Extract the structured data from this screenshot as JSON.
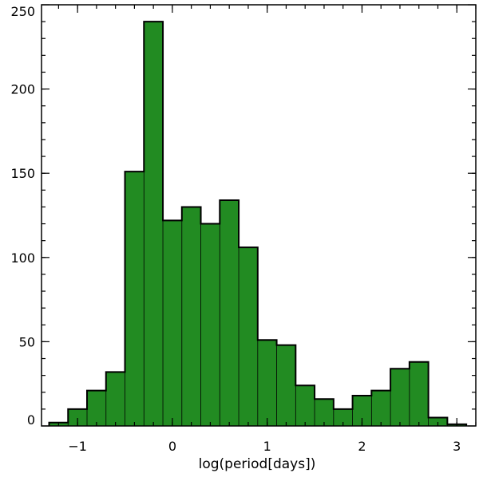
{
  "chart_data": {
    "type": "bar",
    "title": "",
    "xlabel": "log(period[days])",
    "ylabel": "",
    "xlim": [
      -1.38,
      3.2
    ],
    "ylim": [
      0,
      250
    ],
    "bar_color": "#228b22",
    "edge_color": "#000000",
    "bins": [
      {
        "x0": -1.3,
        "x1": -1.1,
        "value": 2
      },
      {
        "x0": -1.1,
        "x1": -0.9,
        "value": 10
      },
      {
        "x0": -0.9,
        "x1": -0.7,
        "value": 21
      },
      {
        "x0": -0.7,
        "x1": -0.5,
        "value": 32
      },
      {
        "x0": -0.5,
        "x1": -0.3,
        "value": 151
      },
      {
        "x0": -0.3,
        "x1": -0.1,
        "value": 240
      },
      {
        "x0": -0.1,
        "x1": 0.1,
        "value": 122
      },
      {
        "x0": 0.1,
        "x1": 0.3,
        "value": 130
      },
      {
        "x0": 0.3,
        "x1": 0.5,
        "value": 120
      },
      {
        "x0": 0.5,
        "x1": 0.7,
        "value": 134
      },
      {
        "x0": 0.7,
        "x1": 0.9,
        "value": 106
      },
      {
        "x0": 0.9,
        "x1": 1.1,
        "value": 51
      },
      {
        "x0": 1.1,
        "x1": 1.3,
        "value": 48
      },
      {
        "x0": 1.3,
        "x1": 1.5,
        "value": 24
      },
      {
        "x0": 1.5,
        "x1": 1.7,
        "value": 16
      },
      {
        "x0": 1.7,
        "x1": 1.9,
        "value": 10
      },
      {
        "x0": 1.9,
        "x1": 2.1,
        "value": 18
      },
      {
        "x0": 2.1,
        "x1": 2.3,
        "value": 21
      },
      {
        "x0": 2.3,
        "x1": 2.5,
        "value": 34
      },
      {
        "x0": 2.5,
        "x1": 2.7,
        "value": 38
      },
      {
        "x0": 2.7,
        "x1": 2.9,
        "value": 5
      },
      {
        "x0": 2.9,
        "x1": 3.1,
        "value": 1
      }
    ],
    "x_ticks": [
      {
        "value": -1,
        "label": "−1"
      },
      {
        "value": 0,
        "label": "0"
      },
      {
        "value": 1,
        "label": "1"
      },
      {
        "value": 2,
        "label": "2"
      },
      {
        "value": 3,
        "label": "3"
      }
    ],
    "x_minor_step": 0.2,
    "y_ticks": [
      {
        "value": 0,
        "label": "0"
      },
      {
        "value": 50,
        "label": "50"
      },
      {
        "value": 100,
        "label": "100"
      },
      {
        "value": 150,
        "label": "150"
      },
      {
        "value": 200,
        "label": "200"
      },
      {
        "value": 250,
        "label": "250"
      }
    ],
    "y_minor_step": 10,
    "grid": false,
    "legend": "none"
  }
}
